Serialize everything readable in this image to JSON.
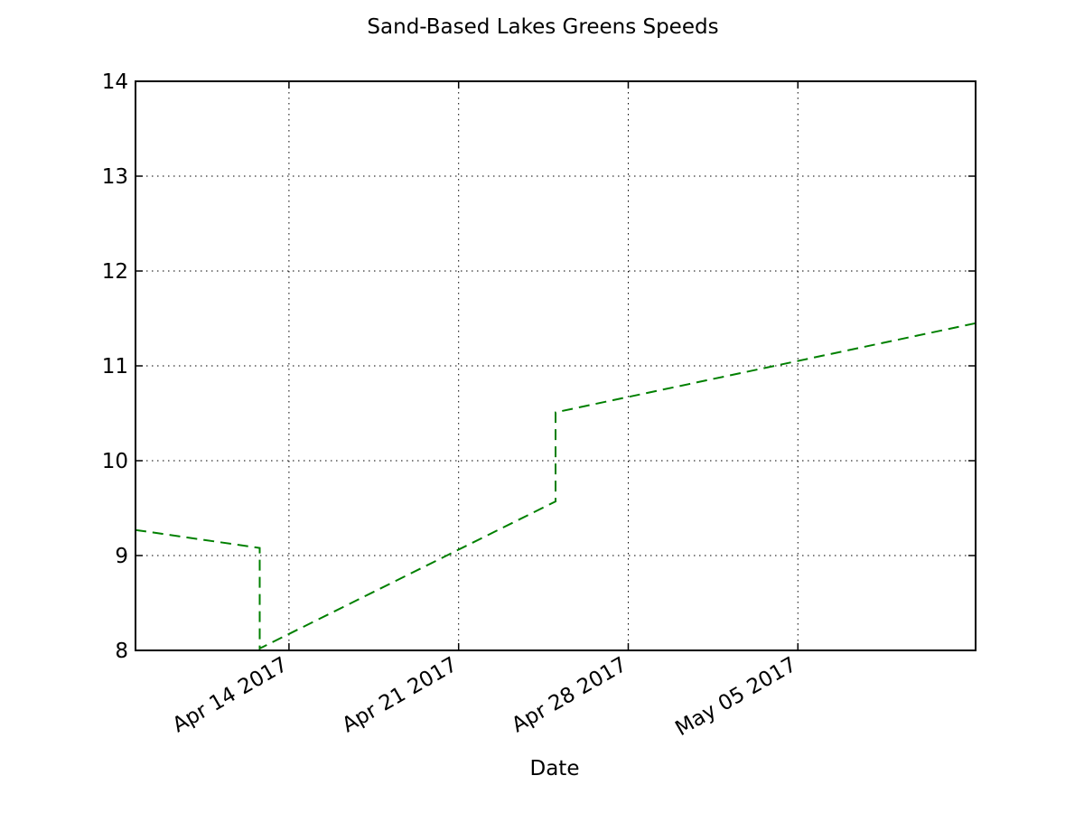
{
  "chart_data": {
    "type": "line",
    "title": "Sand-Based Lakes Greens Speeds",
    "xlabel": "Date",
    "ylabel": "",
    "x_scale": "date",
    "xlim": [
      "2017-04-07T16:00",
      "2017-05-12T08:00"
    ],
    "ylim": [
      8,
      14
    ],
    "x_ticks": [
      {
        "date": "2017-04-14",
        "label": "Apr 14 2017"
      },
      {
        "date": "2017-04-21",
        "label": "Apr 21 2017"
      },
      {
        "date": "2017-04-28",
        "label": "Apr 28 2017"
      },
      {
        "date": "2017-05-05",
        "label": "May 05 2017"
      }
    ],
    "y_ticks": [
      8,
      9,
      10,
      11,
      12,
      13,
      14
    ],
    "grid": true,
    "legend": "none",
    "series": [
      {
        "color": "#008000",
        "linestyle": "dashed",
        "points": [
          {
            "x": "2017-04-07T16:00",
            "y": 9.27
          },
          {
            "x": "2017-04-12T19:00",
            "y": 9.08
          },
          {
            "x": "2017-04-12T19:00",
            "y": 8.02
          },
          {
            "x": "2017-04-25T00:00",
            "y": 9.57
          },
          {
            "x": "2017-04-25T00:00",
            "y": 10.51
          },
          {
            "x": "2017-05-12T08:00",
            "y": 11.45
          }
        ]
      }
    ]
  }
}
